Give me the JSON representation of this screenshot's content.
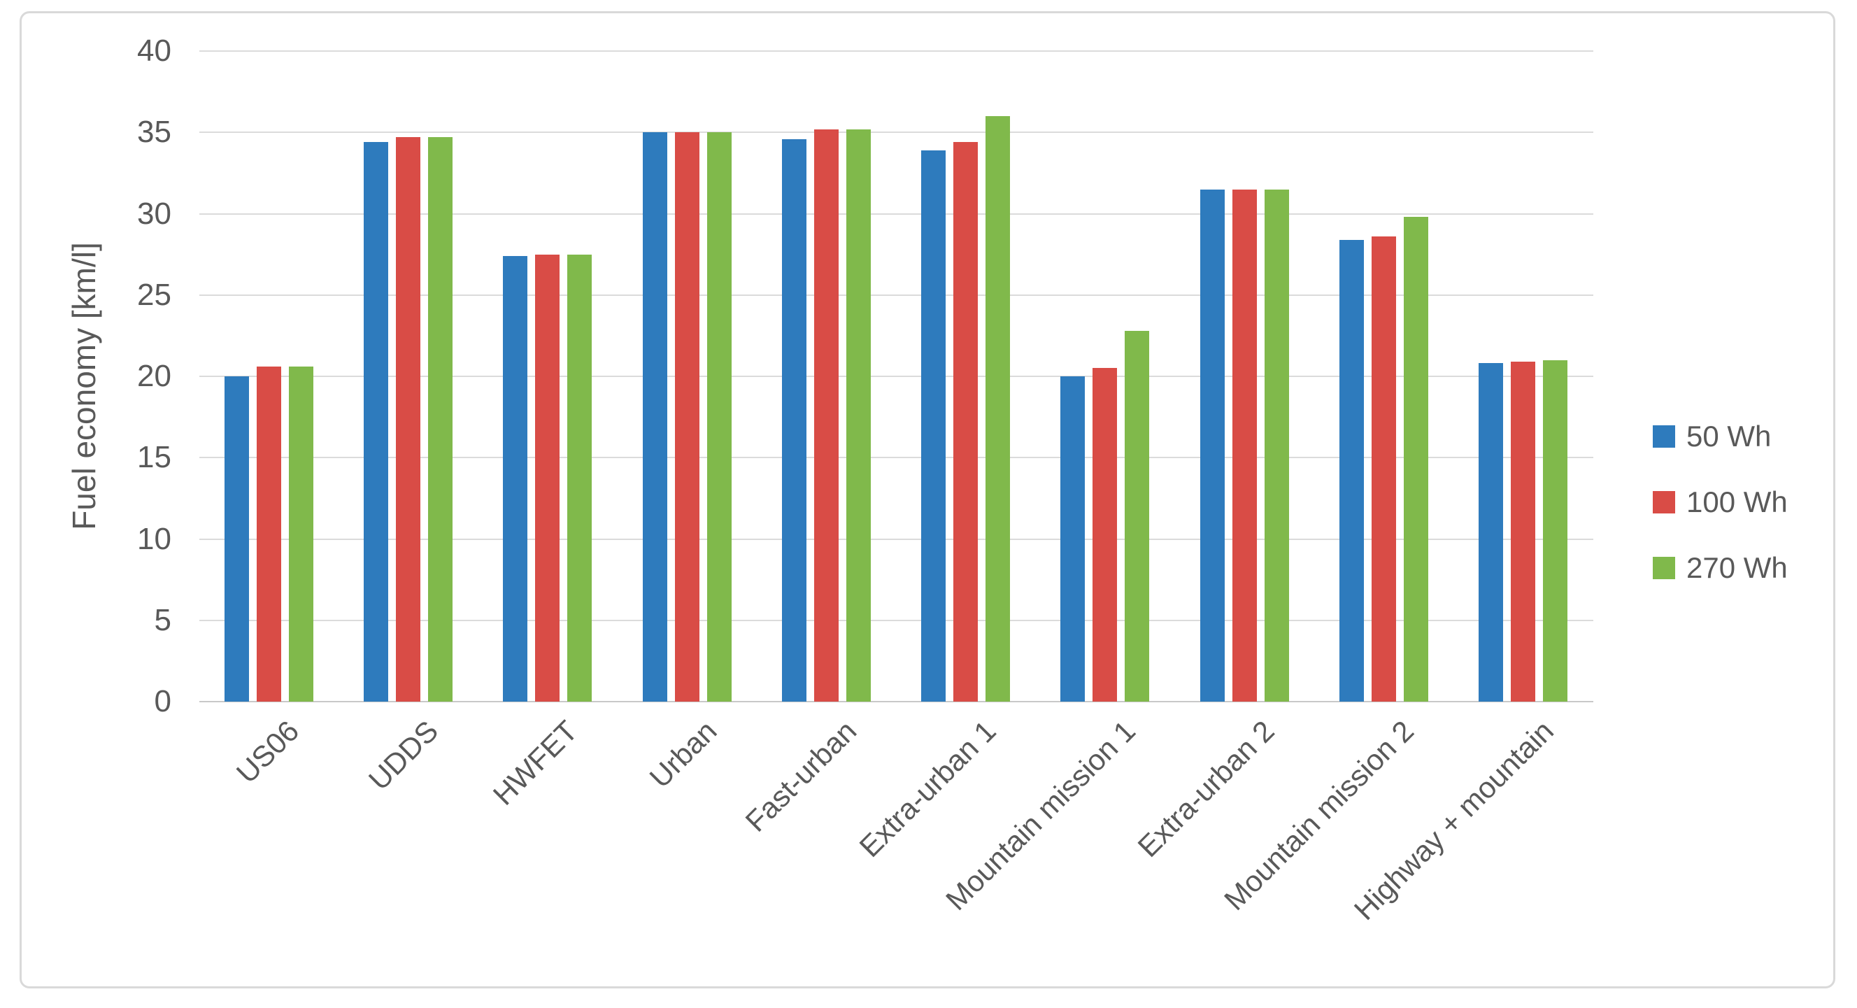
{
  "figure": {
    "background": "#FFFFFF",
    "frame_border_color": "#D9D9D9",
    "text_color": "#595959",
    "gridline_color": "#DBDBDB",
    "axis_line_color": "#C9C9C9"
  },
  "chart_data": {
    "type": "bar",
    "title": "",
    "xlabel": "",
    "ylabel": "Fuel economy [km/l]",
    "ylim": [
      0,
      40
    ],
    "ytick_step": 5,
    "grid": true,
    "legend_position": "right",
    "categories": [
      "US06",
      "UDDS",
      "HWFET",
      "Urban",
      "Fast-urban",
      "Extra-urban 1",
      "Mountain mission 1",
      "Extra-urban 2",
      "Mountain mission 2",
      "Highway + mountain"
    ],
    "series": [
      {
        "name": "50 Wh",
        "color": "#2E7BBD",
        "values": [
          20.0,
          34.4,
          27.4,
          35.0,
          34.6,
          33.9,
          20.0,
          31.5,
          28.4,
          20.8
        ]
      },
      {
        "name": "100 Wh",
        "color": "#D94C46",
        "values": [
          20.6,
          34.7,
          27.5,
          35.0,
          35.2,
          34.4,
          20.5,
          31.5,
          28.6,
          20.9
        ]
      },
      {
        "name": "270 Wh",
        "color": "#80B94B",
        "values": [
          20.6,
          34.7,
          27.5,
          35.0,
          35.2,
          36.0,
          22.8,
          31.5,
          29.8,
          21.0
        ]
      }
    ]
  }
}
